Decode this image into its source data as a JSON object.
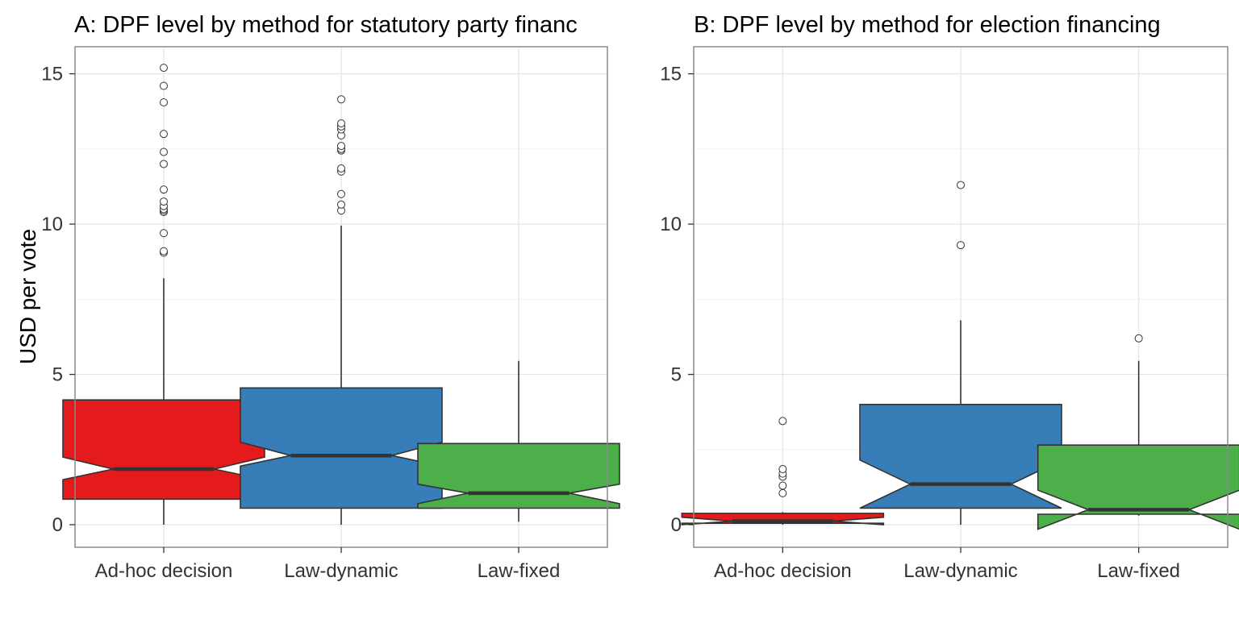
{
  "colors": {
    "Ad-hoc decision": "#e41a1c",
    "Law-dynamic": "#377eb8",
    "Law-fixed": "#4daf4a"
  },
  "chart_data": [
    {
      "type": "boxplot",
      "title": "A: DPF level by method for statutory party financ",
      "xlabel": "",
      "ylabel": "USD per vote",
      "ylim": [
        -0.75,
        15.9
      ],
      "yticks": [
        "0",
        "5",
        "10",
        "15"
      ],
      "ytick_values": [
        0,
        5,
        10,
        15
      ],
      "categories": [
        "Ad-hoc decision",
        "Law-dynamic",
        "Law-fixed"
      ],
      "notched": true,
      "grid": true,
      "boxes": [
        {
          "category": "Ad-hoc decision",
          "whisker_low": 0.0,
          "q1": 0.85,
          "median": 1.85,
          "q3": 4.15,
          "whisker_high": 8.2,
          "notch_low": 1.5,
          "notch_high": 2.25,
          "outliers": [
            9.05,
            9.1,
            9.7,
            10.4,
            10.45,
            10.5,
            10.6,
            10.75,
            11.15,
            12.0,
            12.4,
            13.0,
            14.05,
            14.6,
            15.2
          ]
        },
        {
          "category": "Law-dynamic",
          "whisker_low": 0.0,
          "q1": 0.55,
          "median": 2.3,
          "q3": 4.55,
          "whisker_high": 9.95,
          "notch_low": 1.95,
          "notch_high": 2.75,
          "outliers": [
            10.45,
            10.65,
            11.0,
            11.75,
            11.85,
            12.45,
            12.5,
            12.6,
            12.95,
            13.15,
            13.25,
            13.35,
            14.15
          ]
        },
        {
          "category": "Law-fixed",
          "whisker_low": 0.1,
          "q1": 0.55,
          "median": 1.05,
          "q3": 2.7,
          "whisker_high": 5.45,
          "notch_low": 0.7,
          "notch_high": 1.35,
          "outliers": []
        }
      ]
    },
    {
      "type": "boxplot",
      "title": "B: DPF level by method for election  financing",
      "xlabel": "",
      "ylabel": "",
      "ylim": [
        -0.75,
        15.9
      ],
      "yticks": [
        "0",
        "5",
        "10",
        "15"
      ],
      "ytick_values": [
        0,
        5,
        10,
        15
      ],
      "categories": [
        "Ad-hoc decision",
        "Law-dynamic",
        "Law-fixed"
      ],
      "notched": true,
      "grid": true,
      "boxes": [
        {
          "category": "Ad-hoc decision",
          "whisker_low": 0.0,
          "q1": 0.05,
          "median": 0.12,
          "q3": 0.38,
          "whisker_high": 0.42,
          "notch_low": 0.0,
          "notch_high": 0.25,
          "outliers": [
            1.05,
            1.3,
            1.6,
            1.7,
            1.85,
            3.45
          ]
        },
        {
          "category": "Law-dynamic",
          "whisker_low": 0.0,
          "q1": 0.55,
          "median": 1.35,
          "q3": 4.0,
          "whisker_high": 6.8,
          "notch_low": 0.55,
          "notch_high": 2.15,
          "outliers": [
            9.3,
            11.3
          ]
        },
        {
          "category": "Law-fixed",
          "whisker_low": 0.3,
          "q1": 0.35,
          "median": 0.5,
          "q3": 2.65,
          "whisker_high": 5.45,
          "notch_low": -0.15,
          "notch_high": 1.15,
          "outliers": [
            6.2
          ]
        }
      ]
    }
  ]
}
